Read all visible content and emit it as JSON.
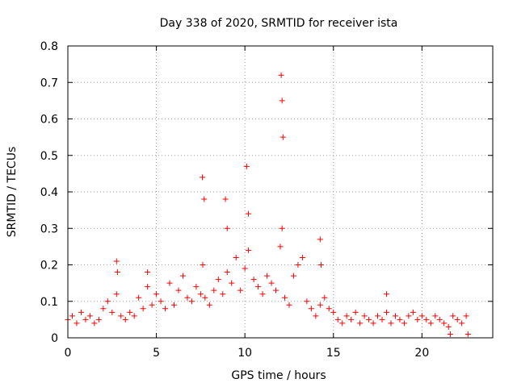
{
  "chart_data": {
    "type": "scatter",
    "title": "Day 338 of 2020, SRMTID for receiver ista",
    "xlabel": "GPS time / hours",
    "ylabel": "SRMTID / TECUs",
    "xlim": [
      0,
      24
    ],
    "ylim": [
      0,
      0.8
    ],
    "xticks": [
      0,
      5,
      10,
      15,
      20
    ],
    "xtick_labels": [
      "0",
      "5",
      "10",
      "15",
      "20"
    ],
    "yticks": [
      0,
      0.1,
      0.2,
      0.3,
      0.4,
      0.5,
      0.6,
      0.7,
      0.8
    ],
    "ytick_labels": [
      "0",
      "0.1",
      "0.2",
      "0.3",
      "0.4",
      "0.5",
      "0.6",
      "0.7",
      "0.8"
    ],
    "grid": true,
    "marker": "plus",
    "color": "#ff0000",
    "series": [
      {
        "name": "SRMTID",
        "x": [
          0.0,
          0.25,
          0.5,
          0.75,
          1.0,
          1.25,
          1.5,
          1.75,
          2.0,
          2.25,
          2.5,
          2.75,
          3.0,
          3.25,
          3.5,
          3.75,
          4.0,
          4.25,
          4.5,
          4.75,
          5.0,
          5.25,
          5.5,
          5.75,
          6.0,
          6.25,
          6.5,
          6.75,
          7.0,
          7.25,
          7.5,
          7.62,
          7.75,
          8.0,
          8.25,
          8.5,
          8.75,
          9.0,
          9.25,
          9.5,
          9.75,
          10.0,
          10.2,
          10.5,
          10.75,
          11.0,
          11.25,
          11.5,
          11.75,
          12.0,
          12.1,
          12.25,
          12.5,
          12.75,
          13.0,
          13.25,
          13.5,
          13.75,
          14.0,
          14.25,
          14.5,
          14.75,
          15.0,
          15.25,
          15.5,
          15.75,
          16.0,
          16.25,
          16.5,
          16.75,
          17.0,
          17.25,
          17.5,
          17.75,
          18.0,
          18.25,
          18.5,
          18.75,
          19.0,
          19.25,
          19.5,
          19.75,
          20.0,
          20.25,
          20.5,
          20.75,
          21.0,
          21.25,
          21.5,
          21.75,
          22.0,
          22.25,
          22.5,
          2.75,
          2.8,
          4.5,
          7.6,
          7.7,
          8.9,
          9.0,
          10.1,
          10.2,
          12.05,
          12.1,
          12.15,
          14.25,
          14.3,
          18.0,
          21.6,
          22.6
        ],
        "y": [
          0.05,
          0.06,
          0.04,
          0.07,
          0.05,
          0.06,
          0.04,
          0.05,
          0.08,
          0.1,
          0.07,
          0.12,
          0.06,
          0.05,
          0.07,
          0.06,
          0.11,
          0.08,
          0.14,
          0.09,
          0.12,
          0.1,
          0.08,
          0.15,
          0.09,
          0.13,
          0.17,
          0.11,
          0.1,
          0.14,
          0.12,
          0.2,
          0.11,
          0.09,
          0.13,
          0.16,
          0.12,
          0.18,
          0.15,
          0.22,
          0.13,
          0.19,
          0.24,
          0.16,
          0.14,
          0.12,
          0.17,
          0.15,
          0.13,
          0.25,
          0.3,
          0.11,
          0.09,
          0.17,
          0.2,
          0.22,
          0.1,
          0.08,
          0.06,
          0.09,
          0.11,
          0.08,
          0.07,
          0.05,
          0.04,
          0.06,
          0.05,
          0.07,
          0.04,
          0.06,
          0.05,
          0.04,
          0.06,
          0.05,
          0.07,
          0.04,
          0.06,
          0.05,
          0.04,
          0.06,
          0.07,
          0.05,
          0.06,
          0.05,
          0.04,
          0.06,
          0.05,
          0.04,
          0.03,
          0.06,
          0.05,
          0.04,
          0.06,
          0.21,
          0.18,
          0.18,
          0.44,
          0.38,
          0.38,
          0.3,
          0.47,
          0.34,
          0.72,
          0.65,
          0.55,
          0.27,
          0.2,
          0.12,
          0.01,
          0.01
        ]
      }
    ]
  }
}
